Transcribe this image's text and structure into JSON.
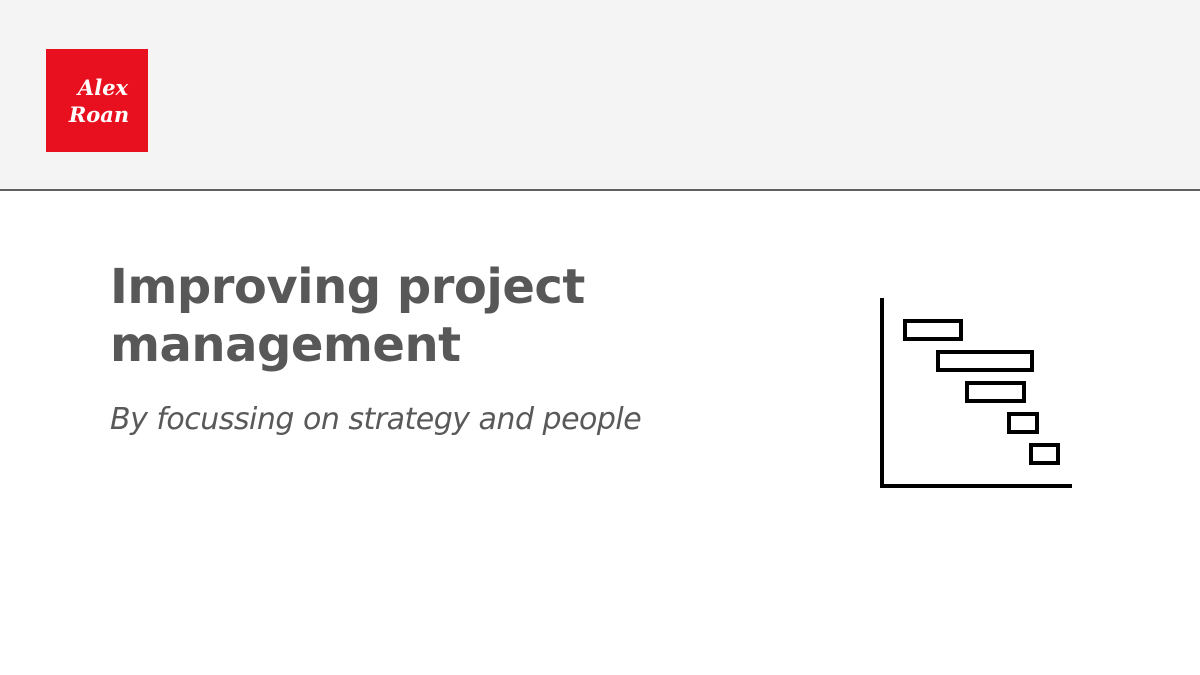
{
  "header": {
    "background": "#f4f4f4",
    "divider_color": "#5f5f5f"
  },
  "logo": {
    "line1": "Alex",
    "line2": "Roan",
    "color": "#e8101e"
  },
  "slide": {
    "title_line1": "Improving project",
    "title_line2": "management",
    "subtitle": "By focussing on strategy and people",
    "text_color": "#585858"
  },
  "icon": {
    "name": "gantt-chart-icon",
    "bars": 5
  }
}
